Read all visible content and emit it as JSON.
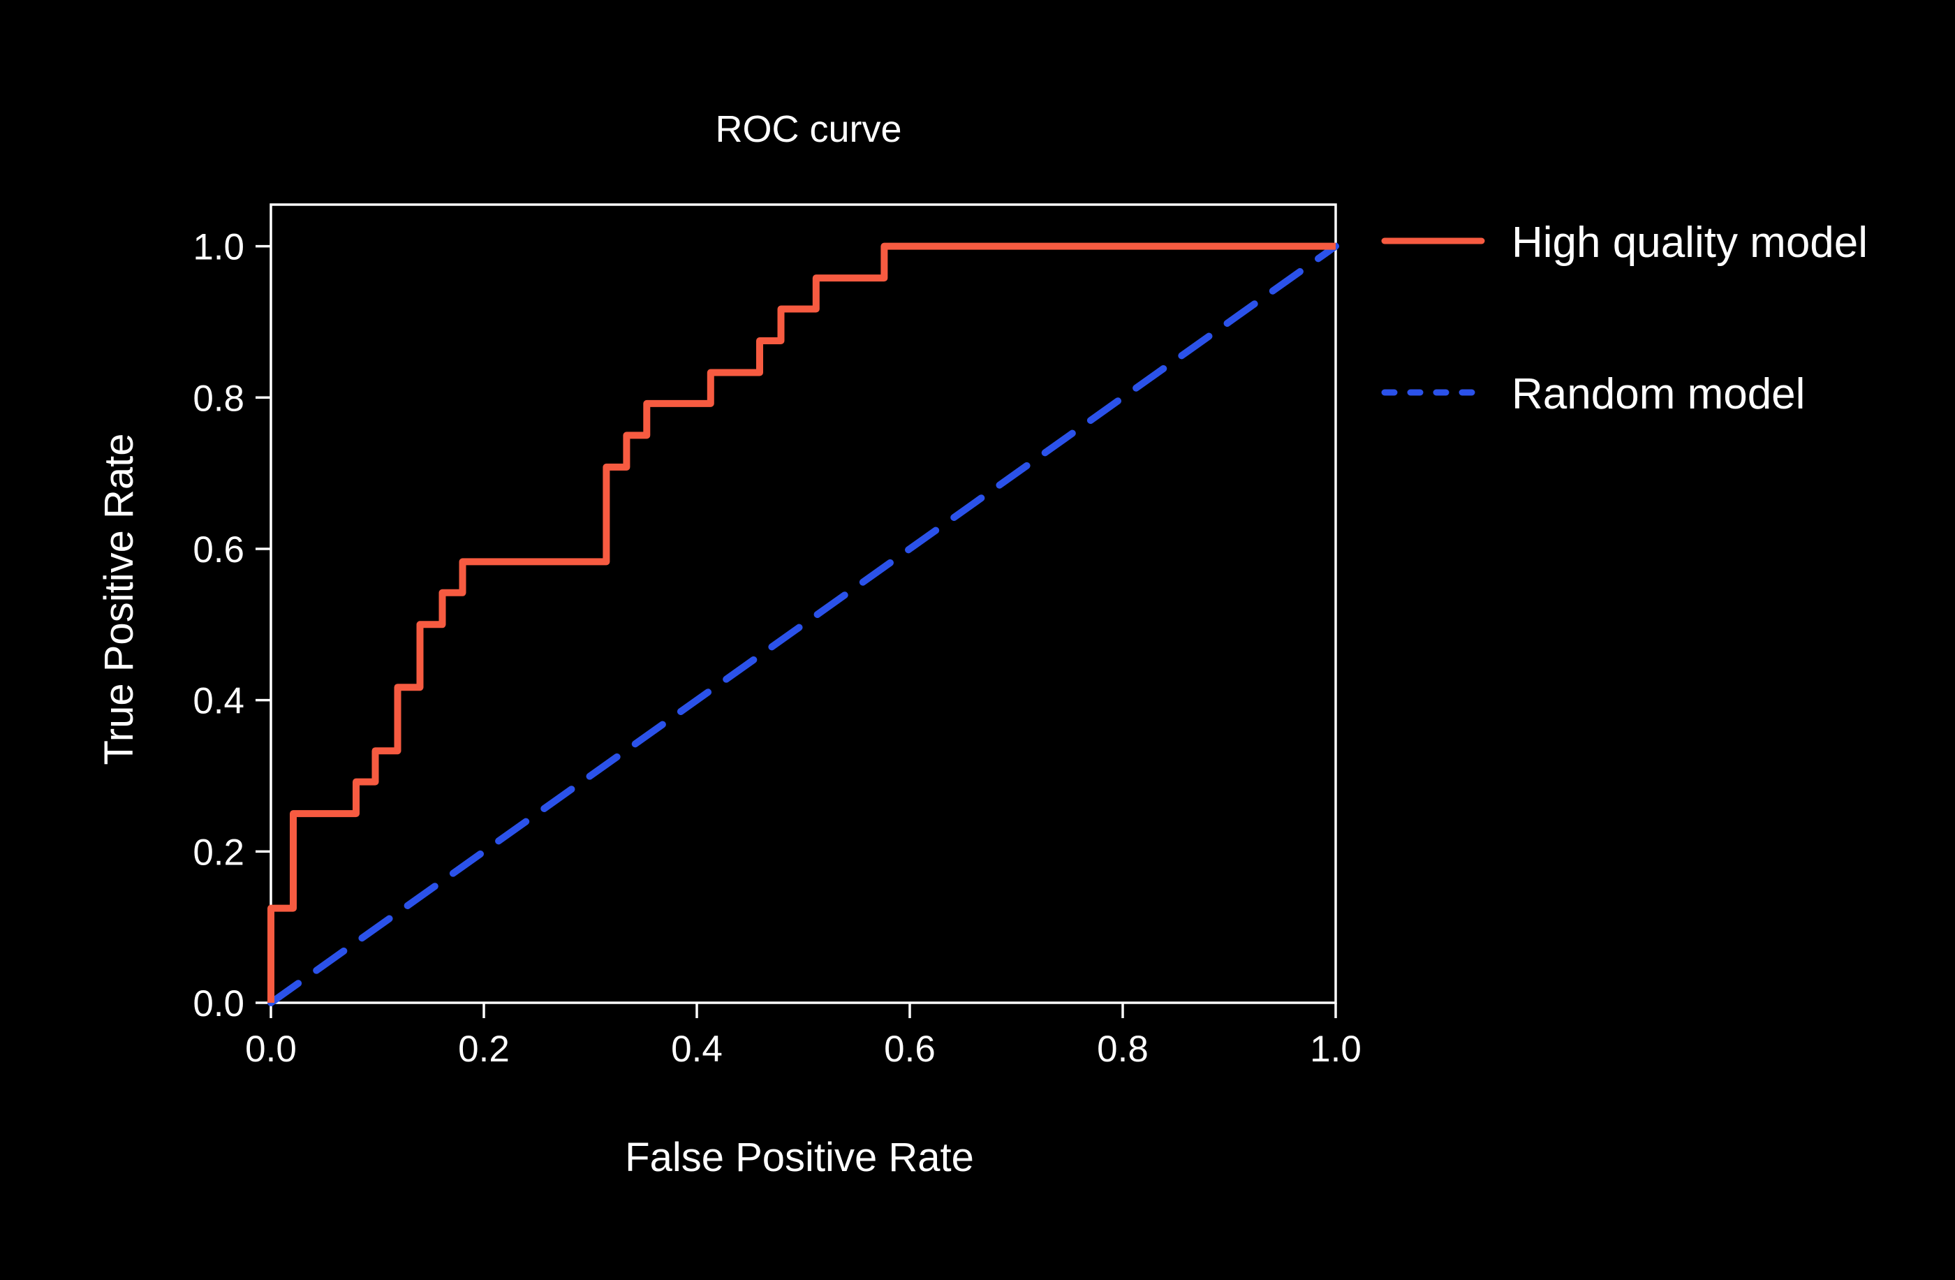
{
  "page": {
    "background_color": "#000000",
    "text_color": "#ffffff",
    "spine_color": "#ffffff"
  },
  "chart_data": {
    "type": "line",
    "subtype": "roc-step-curve",
    "title": "ROC curve",
    "xlabel": "False Positive Rate",
    "ylabel": "True Positive Rate",
    "xlim": [
      0,
      1.0
    ],
    "ylim": [
      0,
      1.055
    ],
    "grid": false,
    "legend_position": "outside-upper-right",
    "x_tick_values": [
      0.0,
      0.2,
      0.4,
      0.6,
      0.8,
      1.0
    ],
    "x_tick_labels": [
      "0.0",
      "0.2",
      "0.4",
      "0.6",
      "0.8",
      "1.0"
    ],
    "y_tick_values": [
      0.0,
      0.2,
      0.4,
      0.6,
      0.8,
      1.0
    ],
    "y_tick_labels": [
      "0.0",
      "0.2",
      "0.4",
      "0.6",
      "0.8",
      "1.0"
    ],
    "series": [
      {
        "name": "High quality model",
        "color": "#F75B41",
        "line_style": "solid",
        "line_width": 10,
        "points": [
          [
            0.0,
            0.0
          ],
          [
            0.0,
            0.125
          ],
          [
            0.021,
            0.125
          ],
          [
            0.021,
            0.25
          ],
          [
            0.08,
            0.25
          ],
          [
            0.08,
            0.292
          ],
          [
            0.098,
            0.292
          ],
          [
            0.098,
            0.333
          ],
          [
            0.119,
            0.333
          ],
          [
            0.119,
            0.417
          ],
          [
            0.14,
            0.417
          ],
          [
            0.14,
            0.5
          ],
          [
            0.161,
            0.5
          ],
          [
            0.161,
            0.542
          ],
          [
            0.18,
            0.542
          ],
          [
            0.18,
            0.583
          ],
          [
            0.315,
            0.583
          ],
          [
            0.315,
            0.708
          ],
          [
            0.334,
            0.708
          ],
          [
            0.334,
            0.75
          ],
          [
            0.353,
            0.75
          ],
          [
            0.353,
            0.792
          ],
          [
            0.413,
            0.792
          ],
          [
            0.413,
            0.833
          ],
          [
            0.459,
            0.833
          ],
          [
            0.459,
            0.875
          ],
          [
            0.479,
            0.875
          ],
          [
            0.479,
            0.917
          ],
          [
            0.512,
            0.917
          ],
          [
            0.512,
            0.958
          ],
          [
            0.576,
            0.958
          ],
          [
            0.576,
            1.0
          ],
          [
            1.0,
            1.0
          ]
        ]
      },
      {
        "name": "Random model",
        "color": "#2B52EA",
        "line_style": "dashed",
        "line_width": 10,
        "points": [
          [
            0.0,
            0.0
          ],
          [
            1.0,
            1.0
          ]
        ]
      }
    ]
  },
  "legend": {
    "items": [
      {
        "label": "High quality model",
        "color": "#F75B41",
        "line_style": "solid"
      },
      {
        "label": "Random model",
        "color": "#2B52EA",
        "line_style": "dashed"
      }
    ]
  }
}
